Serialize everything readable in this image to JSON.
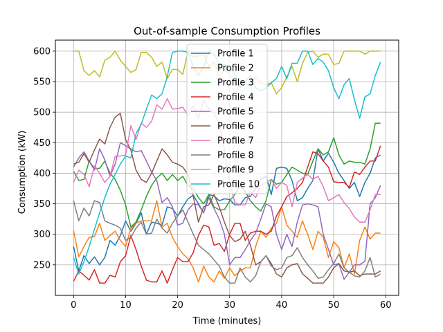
{
  "chart_data": {
    "type": "line",
    "title": "Out-of-sample Consumption Profiles",
    "xlabel": "Time (minutes)",
    "ylabel": "Consumption (kW)",
    "xlim": [
      -3.5,
      62.5
    ],
    "ylim": [
      200,
      618
    ],
    "xticks": [
      0,
      10,
      20,
      30,
      40,
      50,
      60
    ],
    "yticks": [
      250,
      300,
      350,
      400,
      450,
      500,
      550,
      600
    ],
    "grid": true,
    "legend_position": "top-center",
    "x": [
      0,
      1,
      2,
      3,
      4,
      5,
      6,
      7,
      8,
      9,
      10,
      11,
      12,
      13,
      14,
      15,
      16,
      17,
      18,
      19,
      20,
      21,
      22,
      23,
      24,
      25,
      26,
      27,
      28,
      29,
      30,
      31,
      32,
      33,
      34,
      35,
      36,
      37,
      38,
      39,
      40,
      41,
      42,
      43,
      44,
      45,
      46,
      47,
      48,
      49,
      50,
      51,
      52,
      53,
      54,
      55,
      56,
      57,
      58,
      59
    ],
    "series": [
      {
        "name": "Profile 1",
        "color": "#1f77b4",
        "values": [
          280,
          240,
          265,
          252,
          263,
          250,
          262,
          290,
          282,
          298,
          322,
          305,
          318,
          335,
          300,
          320,
          318,
          315,
          345,
          342,
          330,
          345,
          358,
          364,
          350,
          335,
          365,
          363,
          355,
          358,
          357,
          348,
          348,
          360,
          362,
          375,
          390,
          395,
          365,
          408,
          410,
          408,
          388,
          355,
          360,
          375,
          388,
          440,
          420,
          433,
          418,
          400,
          388,
          375,
          385,
          362,
          385,
          400,
          425,
          430
        ]
      },
      {
        "name": "Profile 2",
        "color": "#ff7f0e",
        "values": [
          306,
          263,
          280,
          295,
          296,
          318,
          290,
          298,
          305,
          290,
          280,
          310,
          318,
          322,
          322,
          322,
          355,
          312,
          318,
          295,
          280,
          268,
          260,
          245,
          222,
          248,
          230,
          222,
          240,
          228,
          245,
          232,
          240,
          245,
          245,
          280,
          305,
          295,
          310,
          318,
          345,
          315,
          305,
          295,
          322,
          300,
          275,
          305,
          295,
          262,
          288,
          278,
          245,
          268,
          235,
          290,
          312,
          292,
          302,
          302
        ]
      },
      {
        "name": "Profile 3",
        "color": "#2ca02c",
        "values": [
          403,
          388,
          390,
          420,
          408,
          408,
          420,
          400,
          390,
          372,
          348,
          312,
          320,
          340,
          362,
          380,
          392,
          400,
          388,
          398,
          388,
          395,
          380,
          375,
          360,
          350,
          365,
          345,
          340,
          340,
          355,
          365,
          380,
          370,
          355,
          345,
          338,
          355,
          390,
          382,
          385,
          398,
          410,
          405,
          400,
          398,
          420,
          440,
          430,
          435,
          458,
          430,
          415,
          420,
          418,
          418,
          415,
          440,
          482,
          482
        ]
      },
      {
        "name": "Profile 4",
        "color": "#d62728",
        "values": [
          223,
          240,
          233,
          225,
          242,
          220,
          220,
          233,
          230,
          255,
          265,
          298,
          275,
          248,
          225,
          222,
          222,
          240,
          220,
          242,
          262,
          255,
          255,
          270,
          298,
          315,
          312,
          282,
          285,
          272,
          300,
          318,
          318,
          290,
          302,
          305,
          305,
          300,
          305,
          330,
          345,
          362,
          368,
          375,
          385,
          410,
          435,
          432,
          420,
          410,
          386,
          385,
          385,
          377,
          402,
          398,
          410,
          420,
          420,
          445
        ]
      },
      {
        "name": "Profile 5",
        "color": "#9467bd",
        "values": [
          410,
          425,
          435,
          420,
          405,
          440,
          422,
          395,
          415,
          450,
          445,
          440,
          435,
          437,
          420,
          402,
          388,
          352,
          360,
          345,
          315,
          318,
          340,
          350,
          348,
          335,
          360,
          342,
          325,
          300,
          250,
          262,
          262,
          275,
          290,
          302,
          325,
          350,
          345,
          300,
          275,
          300,
          280,
          320,
          348,
          350,
          348,
          345,
          300,
          275,
          250,
          252,
          226,
          238,
          250,
          250,
          256,
          350,
          360,
          380
        ]
      },
      {
        "name": "Profile 6",
        "color": "#8c564b",
        "values": [
          415,
          418,
          432,
          418,
          438,
          456,
          448,
          475,
          492,
          498,
          455,
          438,
          405,
          390,
          385,
          400,
          420,
          440,
          430,
          418,
          415,
          410,
          398,
          362,
          320,
          345,
          348,
          365,
          345,
          320,
          298,
          288,
          292,
          305,
          282,
          250,
          255,
          265,
          252,
          235,
          230,
          245,
          250,
          252,
          235,
          228,
          220,
          220,
          220,
          230,
          245,
          252,
          240,
          238,
          240,
          232,
          235,
          235,
          235,
          240
        ]
      },
      {
        "name": "Profile 7",
        "color": "#e377c2",
        "values": [
          385,
          405,
          398,
          378,
          412,
          400,
          385,
          395,
          428,
          428,
          430,
          478,
          455,
          482,
          475,
          485,
          512,
          505,
          522,
          505,
          506,
          508,
          495,
          510,
          490,
          520,
          505,
          500,
          480,
          440,
          385,
          352,
          348,
          348,
          370,
          360,
          380,
          385,
          390,
          375,
          385,
          380,
          345,
          385,
          392,
          398,
          390,
          395,
          378,
          355,
          360,
          365,
          352,
          342,
          328,
          320,
          320,
          340,
          365,
          365
        ]
      },
      {
        "name": "Profile 8",
        "color": "#7f7f7f",
        "values": [
          355,
          322,
          343,
          330,
          355,
          352,
          322,
          318,
          315,
          310,
          290,
          295,
          310,
          320,
          300,
          302,
          325,
          310,
          302,
          318,
          330,
          340,
          320,
          300,
          282,
          275,
          268,
          258,
          248,
          230,
          220,
          220,
          245,
          230,
          222,
          232,
          255,
          265,
          248,
          242,
          245,
          262,
          265,
          278,
          262,
          250,
          240,
          228,
          230,
          242,
          252,
          268,
          245,
          238,
          232,
          230,
          240,
          262,
          230,
          235
        ]
      },
      {
        "name": "Profile 9",
        "color": "#bcbd22",
        "values": [
          600,
          600,
          568,
          560,
          568,
          558,
          585,
          590,
          600,
          585,
          575,
          565,
          570,
          598,
          598,
          590,
          575,
          582,
          555,
          570,
          570,
          562,
          600,
          590,
          592,
          595,
          575,
          582,
          558,
          570,
          562,
          548,
          548,
          545,
          545,
          558,
          548,
          545,
          548,
          530,
          540,
          558,
          575,
          550,
          580,
          598,
          600,
          590,
          595,
          595,
          578,
          580,
          600,
          600,
          600,
          600,
          595,
          600,
          600,
          600
        ]
      },
      {
        "name": "Profile 10",
        "color": "#17becf",
        "values": [
          262,
          235,
          255,
          280,
          308,
          335,
          360,
          382,
          398,
          415,
          428,
          425,
          465,
          480,
          505,
          528,
          522,
          530,
          558,
          598,
          600,
          600,
          598,
          575,
          560,
          575,
          600,
          595,
          580,
          578,
          575,
          562,
          540,
          550,
          560,
          540,
          535,
          540,
          548,
          555,
          575,
          555,
          580,
          580,
          600,
          600,
          578,
          588,
          582,
          568,
          540,
          522,
          545,
          555,
          520,
          490,
          525,
          530,
          560,
          582
        ]
      }
    ]
  }
}
